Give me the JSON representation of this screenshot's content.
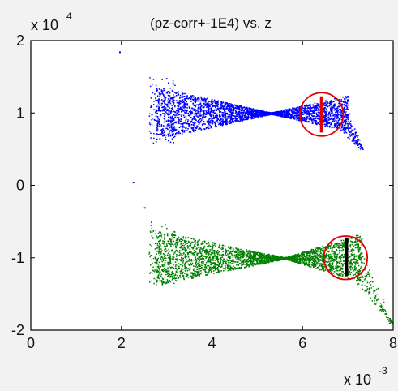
{
  "chart_data": {
    "type": "scatter",
    "title": "(pz-corr+-1E4) vs. z",
    "xlim": [
      0,
      8
    ],
    "ylim": [
      -2,
      2
    ],
    "x_ticks": [
      0,
      2,
      4,
      6,
      8
    ],
    "y_ticks": [
      -2,
      -1,
      0,
      1,
      2
    ],
    "x_multiplier_label": {
      "base": "x 10",
      "exponent": "-3"
    },
    "y_multiplier_label": {
      "base": "x 10",
      "exponent": "4"
    },
    "grid": false,
    "series": [
      {
        "color": "#0000ff",
        "shape": "bowtie",
        "x_range": [
          2.6,
          7.1
        ],
        "center_y": 1.0,
        "waist_x": 5.3,
        "left_x": 2.75,
        "half_width_left": 0.36,
        "right_x": 6.85,
        "half_width_right": 0.22,
        "tail_to": [
          7.3,
          0.5
        ],
        "outliers": [
          [
            1.95,
            1.85
          ],
          [
            2.25,
            0.05
          ]
        ]
      },
      {
        "color": "#007f00",
        "shape": "bowtie",
        "x_range": [
          2.6,
          7.7
        ],
        "center_y": -1.0,
        "waist_x": 5.6,
        "left_x": 3.0,
        "half_width_left": 0.34,
        "right_x": 7.15,
        "half_width_right": 0.3,
        "tail_to": [
          7.95,
          -1.9
        ],
        "outliers": [
          [
            2.5,
            -0.3
          ],
          [
            2.65,
            -0.5
          ]
        ]
      }
    ],
    "annotations": [
      {
        "type": "circle",
        "stroke": "#e00000",
        "center": [
          6.42,
          0.98
        ],
        "radius_x": 0.48,
        "radius_y": 0.3
      },
      {
        "type": "circle",
        "stroke": "#e00000",
        "center": [
          6.95,
          -1.0
        ],
        "radius_x": 0.48,
        "radius_y": 0.3
      },
      {
        "type": "vline",
        "stroke": "#e00000",
        "x": 6.42,
        "y": [
          0.73,
          1.23
        ]
      },
      {
        "type": "vline",
        "stroke": "#000000",
        "x": 6.97,
        "y": [
          -1.25,
          -0.72
        ]
      }
    ]
  }
}
